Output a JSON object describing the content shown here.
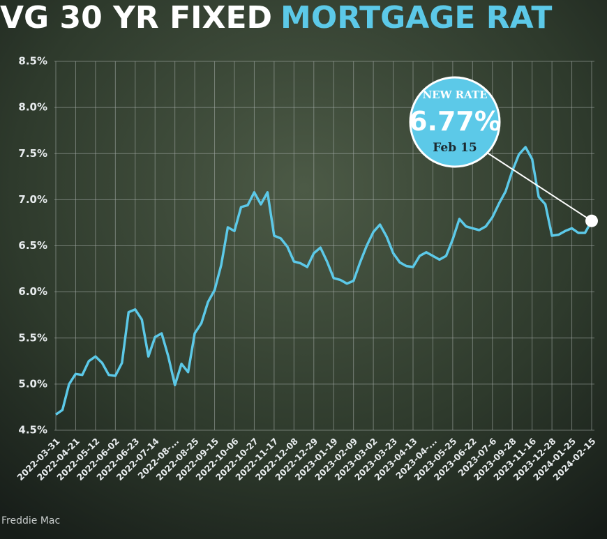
{
  "chart_data": {
    "type": "line",
    "title": "VG 30 YR FIXED",
    "title_highlight": "MORTGAGE RAT",
    "source": "Freddie Mac",
    "annotation": {
      "heading": "NEW RATE",
      "value_label": "6.77%",
      "date": "Feb 15"
    },
    "categories": [
      "2022-03-31",
      null,
      null,
      "2022-04-21",
      null,
      null,
      "2022-05-12",
      null,
      null,
      "2022-06-02",
      null,
      null,
      "2022-06-23",
      null,
      null,
      "2022-07-14",
      null,
      null,
      "2022-08-...",
      null,
      null,
      "2022-08-25",
      null,
      null,
      "2022-09-15",
      null,
      null,
      "2022-10-06",
      null,
      null,
      "2022-10-27",
      null,
      null,
      "2022-11-17",
      null,
      null,
      "2022-12-08",
      null,
      null,
      "2022-12-29",
      null,
      null,
      "2023-01-19",
      null,
      null,
      "2023-02-09",
      null,
      null,
      "2023-03-02",
      null,
      null,
      "2023-03-23",
      null,
      null,
      "2023-04-13",
      null,
      null,
      "2023-04-...",
      null,
      null,
      "2023-05-25",
      null,
      null,
      "2023-06-22",
      null,
      null,
      "2023-07-6",
      null,
      null,
      "2023-09-28",
      null,
      null,
      "2023-11-16",
      null,
      null,
      "2023-12-28",
      null,
      null,
      "2024-01-25",
      null,
      null,
      "2024-02-15"
    ],
    "series": [
      {
        "name": "30 yr fixed",
        "color": "#5cc9e8",
        "values": [
          4.67,
          4.72,
          5.0,
          5.11,
          5.1,
          5.25,
          5.3,
          5.23,
          5.1,
          5.09,
          5.23,
          5.78,
          5.81,
          5.7,
          5.3,
          5.51,
          5.55,
          5.3,
          4.99,
          5.22,
          5.13,
          5.55,
          5.66,
          5.89,
          6.02,
          6.29,
          6.7,
          6.66,
          6.92,
          6.94,
          7.08,
          6.95,
          7.08,
          6.61,
          6.58,
          6.49,
          6.33,
          6.31,
          6.27,
          6.42,
          6.48,
          6.33,
          6.15,
          6.13,
          6.09,
          6.12,
          6.32,
          6.5,
          6.65,
          6.73,
          6.6,
          6.42,
          6.32,
          6.28,
          6.27,
          6.39,
          6.43,
          6.39,
          6.35,
          6.39,
          6.57,
          6.79,
          6.71,
          6.69,
          6.67,
          6.71,
          6.81,
          6.96,
          7.09,
          7.31,
          7.49,
          7.57,
          7.44,
          7.03,
          6.95,
          6.61,
          6.62,
          6.66,
          6.69,
          6.64,
          6.64,
          6.77
        ]
      }
    ],
    "ylim": [
      4.5,
      8.5
    ],
    "yticks": [
      {
        "value": 4.5,
        "label": "4.5%"
      },
      {
        "value": 5.0,
        "label": "5.0%"
      },
      {
        "value": 5.5,
        "label": "5.5%"
      },
      {
        "value": 6.0,
        "label": "6.0%"
      },
      {
        "value": 6.5,
        "label": "6.5%"
      },
      {
        "value": 7.0,
        "label": "7.0%"
      },
      {
        "value": 7.5,
        "label": "7.5%"
      },
      {
        "value": 8.0,
        "label": "8.0%"
      },
      {
        "value": 8.5,
        "label": "8.5%"
      }
    ],
    "grid": true
  }
}
